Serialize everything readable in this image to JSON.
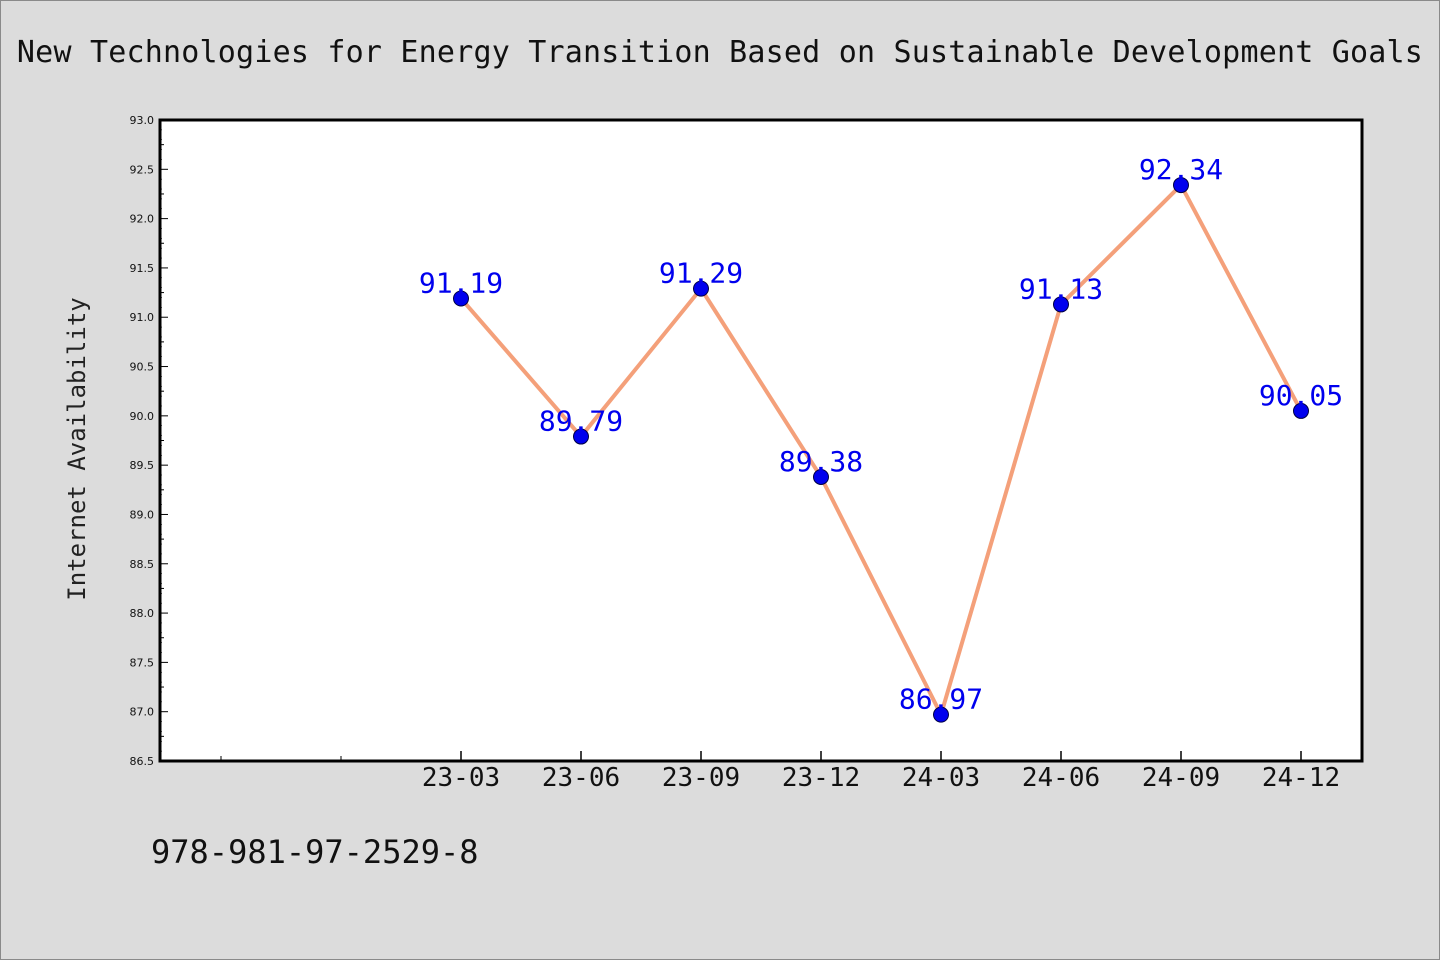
{
  "footer": {
    "code": "978-981-97-2529-8"
  },
  "colors": {
    "background": "#dcdcdc",
    "plot_background": "#ffffff",
    "line": "#f4a07a",
    "marker": "#0000ee",
    "label": "#0000ee"
  },
  "chart_data": {
    "type": "line",
    "title": "New Technologies for Energy Transition Based on Sustainable Development Goals",
    "xlabel": "",
    "ylabel": "Internet Availability",
    "categories": [
      "23-03",
      "23-06",
      "23-09",
      "23-12",
      "24-03",
      "24-06",
      "24-09",
      "24-12"
    ],
    "series": [
      {
        "values": [
          91.19,
          89.79,
          91.29,
          89.38,
          86.97,
          91.13,
          92.34,
          90.05
        ],
        "labels": [
          "91.19",
          "89.79",
          "91.29",
          "89.38",
          "86.97",
          "91.13",
          "92.34",
          "90.05"
        ]
      }
    ],
    "ylim": [
      86.5,
      93.0
    ],
    "yticks": [
      "86.5",
      "87.0",
      "87.5",
      "88.0",
      "88.5",
      "89.0",
      "89.5",
      "90.0",
      "90.5",
      "91.0",
      "91.5",
      "92.0",
      "92.5",
      "93.0"
    ],
    "grid": false,
    "legend": "none",
    "data_labels": true
  }
}
